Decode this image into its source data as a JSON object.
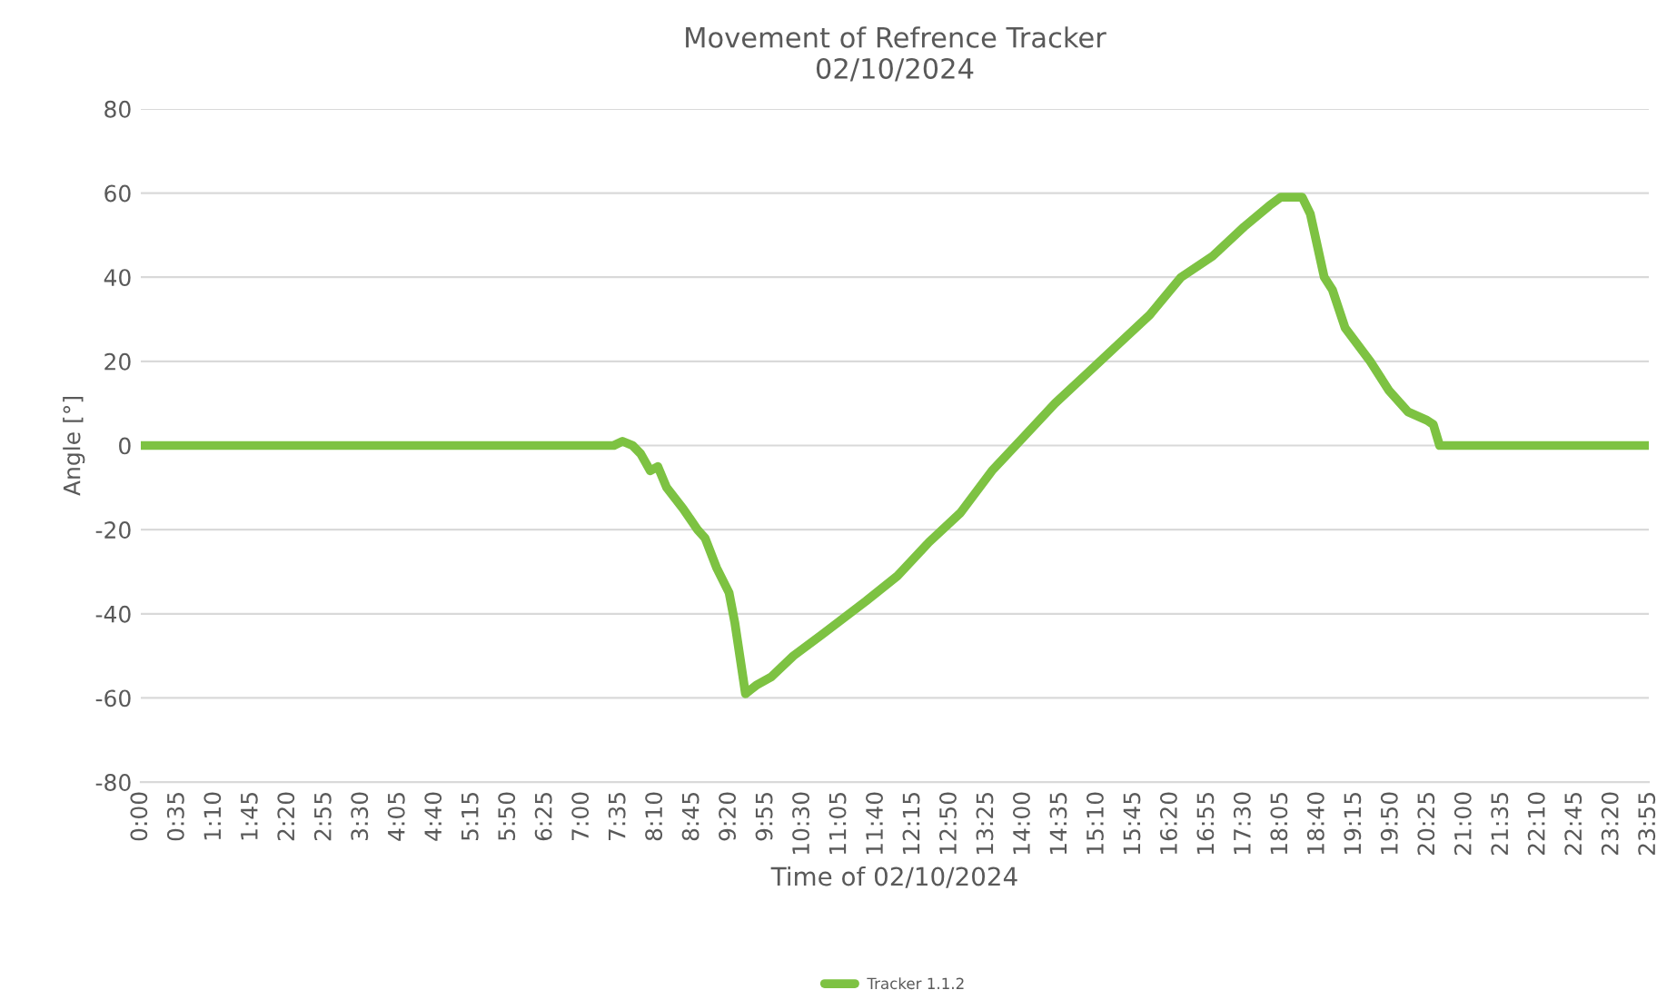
{
  "chart_data": {
    "type": "line",
    "title": "Movement of Refrence Tracker\n02/10/2024",
    "xlabel": "Time of 02/10/2024",
    "ylabel": "Angle [°]",
    "series": [
      {
        "name": "Tracker 1.1.2",
        "color": "#7dc242",
        "x": [
          0,
          7.5,
          7.64,
          7.8,
          7.93,
          8.08,
          8.2,
          8.34,
          8.6,
          8.83,
          8.95,
          9.13,
          9.33,
          9.42,
          9.59,
          9.76,
          10.0,
          10.35,
          10.8,
          11.5,
          12.0,
          12.5,
          13.0,
          13.5,
          14.0,
          14.5,
          15.0,
          15.5,
          16.0,
          16.5,
          17.0,
          17.5,
          17.9,
          18.08,
          18.42,
          18.55,
          18.77,
          18.9,
          19.1,
          19.5,
          19.8,
          20.1,
          20.4,
          20.5,
          20.6,
          23.9167
        ],
        "values": [
          0,
          0,
          1,
          0,
          -2,
          -6,
          -5,
          -10,
          -15,
          -20,
          -22,
          -29,
          -35,
          -42,
          -59,
          -57,
          -55,
          -50,
          -45,
          -37,
          -31,
          -23,
          -16,
          -6,
          2,
          10,
          17,
          24,
          31,
          40,
          45,
          52,
          57,
          59,
          59,
          55,
          40,
          37,
          28,
          20,
          13,
          8,
          6,
          5,
          0,
          0
        ]
      }
    ],
    "xlim": [
      0,
      23.9167
    ],
    "ylim": [
      -80,
      80
    ],
    "yticks": [
      -80,
      -60,
      -40,
      -20,
      0,
      20,
      40,
      60,
      80
    ],
    "xticks": [
      {
        "value": 0,
        "label": "0:00"
      },
      {
        "value": 0.5833,
        "label": "0:35"
      },
      {
        "value": 1.1667,
        "label": "1:10"
      },
      {
        "value": 1.75,
        "label": "1:45"
      },
      {
        "value": 2.3333,
        "label": "2:20"
      },
      {
        "value": 2.9167,
        "label": "2:55"
      },
      {
        "value": 3.5,
        "label": "3:30"
      },
      {
        "value": 4.0833,
        "label": "4:05"
      },
      {
        "value": 4.6667,
        "label": "4:40"
      },
      {
        "value": 5.25,
        "label": "5:15"
      },
      {
        "value": 5.8333,
        "label": "5:50"
      },
      {
        "value": 6.4167,
        "label": "6:25"
      },
      {
        "value": 7,
        "label": "7:00"
      },
      {
        "value": 7.5833,
        "label": "7:35"
      },
      {
        "value": 8.1667,
        "label": "8:10"
      },
      {
        "value": 8.75,
        "label": "8:45"
      },
      {
        "value": 9.3333,
        "label": "9:20"
      },
      {
        "value": 9.9167,
        "label": "9:55"
      },
      {
        "value": 10.5,
        "label": "10:30"
      },
      {
        "value": 11.0833,
        "label": "11:05"
      },
      {
        "value": 11.6667,
        "label": "11:40"
      },
      {
        "value": 12.25,
        "label": "12:15"
      },
      {
        "value": 12.8333,
        "label": "12:50"
      },
      {
        "value": 13.4167,
        "label": "13:25"
      },
      {
        "value": 14,
        "label": "14:00"
      },
      {
        "value": 14.5833,
        "label": "14:35"
      },
      {
        "value": 15.1667,
        "label": "15:10"
      },
      {
        "value": 15.75,
        "label": "15:45"
      },
      {
        "value": 16.3333,
        "label": "16:20"
      },
      {
        "value": 16.9167,
        "label": "16:55"
      },
      {
        "value": 17.5,
        "label": "17:30"
      },
      {
        "value": 18.0833,
        "label": "18:05"
      },
      {
        "value": 18.6667,
        "label": "18:40"
      },
      {
        "value": 19.25,
        "label": "19:15"
      },
      {
        "value": 19.8333,
        "label": "19:50"
      },
      {
        "value": 20.4167,
        "label": "20:25"
      },
      {
        "value": 21,
        "label": "21:00"
      },
      {
        "value": 21.5833,
        "label": "21:35"
      },
      {
        "value": 22.1667,
        "label": "22:10"
      },
      {
        "value": 22.75,
        "label": "22:45"
      },
      {
        "value": 23.3333,
        "label": "23:20"
      },
      {
        "value": 23.9167,
        "label": "23:55"
      }
    ],
    "grid": "y",
    "legend": "bottom",
    "marker": "none",
    "line_style": "solid"
  }
}
